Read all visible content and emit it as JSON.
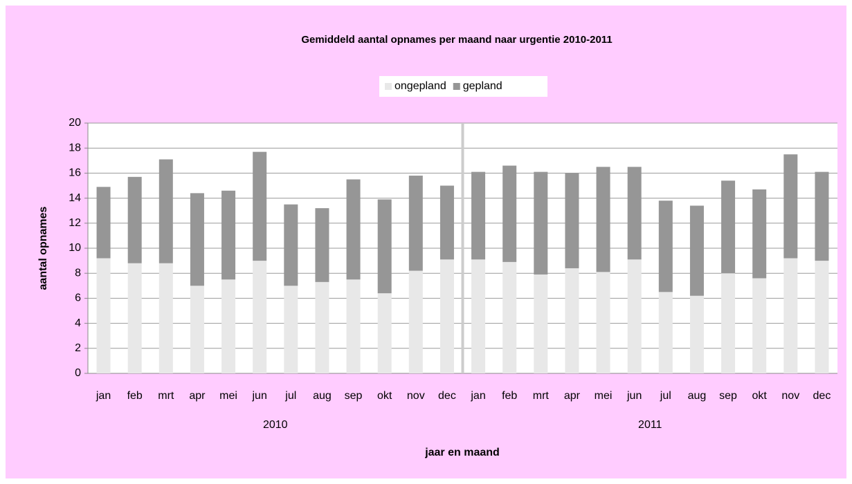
{
  "chart_data": {
    "type": "stacked_bar",
    "title": "Gemiddeld aantal opnames per maand naar urgentie 2010-2011",
    "x_label": "jaar en maand",
    "y_label": "aantal opnames",
    "categories": [
      "jan",
      "feb",
      "mrt",
      "apr",
      "mei",
      "jun",
      "jul",
      "aug",
      "sep",
      "okt",
      "nov",
      "dec",
      "jan",
      "feb",
      "mrt",
      "apr",
      "mei",
      "jun",
      "jul",
      "aug",
      "sep",
      "okt",
      "nov",
      "dec"
    ],
    "group_labels": [
      "2010",
      "2011"
    ],
    "series": [
      {
        "name": "ongepland",
        "color": "#e8e8e8",
        "values": [
          9.2,
          8.8,
          8.8,
          7.0,
          7.5,
          9.0,
          7.0,
          7.3,
          7.5,
          6.4,
          8.2,
          9.1,
          9.1,
          8.9,
          7.9,
          8.4,
          8.1,
          9.1,
          6.5,
          6.2,
          8.0,
          7.6,
          9.2,
          9.0
        ]
      },
      {
        "name": "gepland",
        "color": "#969696",
        "values": [
          5.7,
          6.9,
          8.3,
          7.4,
          7.1,
          8.7,
          6.5,
          5.9,
          8.0,
          7.5,
          7.6,
          5.9,
          7.0,
          7.7,
          8.2,
          7.6,
          8.4,
          7.4,
          7.3,
          7.2,
          7.4,
          7.1,
          8.3,
          7.1
        ]
      }
    ],
    "ylim": [
      0,
      20
    ],
    "yticks": [
      0,
      2,
      4,
      6,
      8,
      10,
      12,
      14,
      16,
      18,
      20
    ],
    "grid": true,
    "legend": "top"
  }
}
